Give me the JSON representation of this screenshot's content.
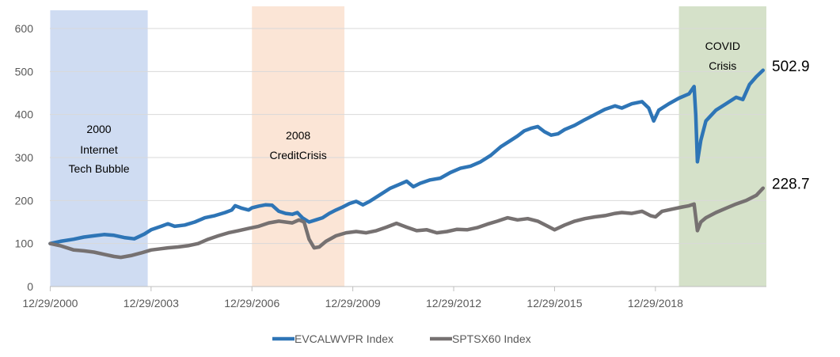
{
  "chart_data": {
    "type": "line",
    "title": "",
    "xlabel": "",
    "ylabel": "",
    "ylim": [
      0,
      600
    ],
    "yticks": [
      0,
      100,
      200,
      300,
      400,
      500,
      600
    ],
    "xlim": [
      2000.99,
      2022.3
    ],
    "xtick_labels": [
      "12/29/2000",
      "12/29/2003",
      "12/29/2006",
      "12/29/2009",
      "12/29/2012",
      "12/29/2015",
      "12/29/2018"
    ],
    "xtick_values": [
      2001,
      2004,
      2007,
      2010,
      2013,
      2016,
      2019
    ],
    "grid": "horizontal",
    "legend_position": "bottom",
    "bands": [
      {
        "x_start": 2001.0,
        "x_end": 2003.9,
        "lines": [
          "2000",
          "Internet",
          "Tech Bubble"
        ],
        "color": "#cfdcf2"
      },
      {
        "x_start": 2007.0,
        "x_end": 2009.75,
        "lines": [
          "2008",
          "CreditCrisis"
        ],
        "color": "#fbe5d6"
      },
      {
        "x_start": 2019.7,
        "x_end": 2022.3,
        "lines": [
          "COVID",
          "Crisis"
        ],
        "color": "#d5e1c9"
      }
    ],
    "series": [
      {
        "name": "EVCALWVPR Index",
        "color": "#2e75b6",
        "end_label": "502.9",
        "points": [
          [
            2001.0,
            100
          ],
          [
            2001.3,
            105
          ],
          [
            2001.7,
            110
          ],
          [
            2002.0,
            115
          ],
          [
            2002.3,
            118
          ],
          [
            2002.6,
            121
          ],
          [
            2002.9,
            119
          ],
          [
            2003.2,
            114
          ],
          [
            2003.5,
            111
          ],
          [
            2003.8,
            122
          ],
          [
            2004.0,
            132
          ],
          [
            2004.3,
            140
          ],
          [
            2004.5,
            146
          ],
          [
            2004.7,
            140
          ],
          [
            2005.0,
            143
          ],
          [
            2005.3,
            150
          ],
          [
            2005.6,
            160
          ],
          [
            2005.9,
            165
          ],
          [
            2006.2,
            172
          ],
          [
            2006.4,
            178
          ],
          [
            2006.5,
            188
          ],
          [
            2006.7,
            182
          ],
          [
            2006.9,
            178
          ],
          [
            2007.0,
            183
          ],
          [
            2007.2,
            187
          ],
          [
            2007.4,
            190
          ],
          [
            2007.6,
            189
          ],
          [
            2007.8,
            175
          ],
          [
            2008.0,
            170
          ],
          [
            2008.2,
            168
          ],
          [
            2008.35,
            172
          ],
          [
            2008.5,
            160
          ],
          [
            2008.7,
            150
          ],
          [
            2008.9,
            155
          ],
          [
            2009.1,
            160
          ],
          [
            2009.3,
            170
          ],
          [
            2009.5,
            178
          ],
          [
            2009.7,
            185
          ],
          [
            2009.9,
            193
          ],
          [
            2010.1,
            198
          ],
          [
            2010.3,
            190
          ],
          [
            2010.5,
            198
          ],
          [
            2010.8,
            213
          ],
          [
            2011.1,
            228
          ],
          [
            2011.4,
            238
          ],
          [
            2011.6,
            245
          ],
          [
            2011.8,
            232
          ],
          [
            2012.0,
            240
          ],
          [
            2012.3,
            248
          ],
          [
            2012.6,
            252
          ],
          [
            2012.9,
            265
          ],
          [
            2013.2,
            275
          ],
          [
            2013.5,
            280
          ],
          [
            2013.8,
            290
          ],
          [
            2014.1,
            305
          ],
          [
            2014.4,
            325
          ],
          [
            2014.7,
            340
          ],
          [
            2014.9,
            350
          ],
          [
            2015.1,
            362
          ],
          [
            2015.3,
            368
          ],
          [
            2015.5,
            372
          ],
          [
            2015.7,
            360
          ],
          [
            2015.9,
            352
          ],
          [
            2016.1,
            355
          ],
          [
            2016.3,
            365
          ],
          [
            2016.6,
            375
          ],
          [
            2016.9,
            388
          ],
          [
            2017.2,
            400
          ],
          [
            2017.5,
            412
          ],
          [
            2017.8,
            420
          ],
          [
            2018.0,
            415
          ],
          [
            2018.3,
            425
          ],
          [
            2018.6,
            430
          ],
          [
            2018.8,
            415
          ],
          [
            2018.95,
            385
          ],
          [
            2019.1,
            410
          ],
          [
            2019.4,
            425
          ],
          [
            2019.7,
            438
          ],
          [
            2020.0,
            448
          ],
          [
            2020.15,
            465
          ],
          [
            2020.2,
            400
          ],
          [
            2020.25,
            290
          ],
          [
            2020.35,
            340
          ],
          [
            2020.5,
            385
          ],
          [
            2020.8,
            410
          ],
          [
            2021.1,
            425
          ],
          [
            2021.4,
            440
          ],
          [
            2021.6,
            435
          ],
          [
            2021.8,
            470
          ],
          [
            2022.0,
            488
          ],
          [
            2022.2,
            502.9
          ]
        ]
      },
      {
        "name": "SPTSX60 Index",
        "color": "#767171",
        "end_label": "228.7",
        "points": [
          [
            2001.0,
            100
          ],
          [
            2001.3,
            95
          ],
          [
            2001.7,
            85
          ],
          [
            2002.0,
            83
          ],
          [
            2002.3,
            80
          ],
          [
            2002.6,
            75
          ],
          [
            2002.9,
            70
          ],
          [
            2003.1,
            68
          ],
          [
            2003.4,
            72
          ],
          [
            2003.7,
            78
          ],
          [
            2004.0,
            85
          ],
          [
            2004.3,
            88
          ],
          [
            2004.5,
            90
          ],
          [
            2004.8,
            92
          ],
          [
            2005.1,
            95
          ],
          [
            2005.4,
            100
          ],
          [
            2005.7,
            110
          ],
          [
            2006.0,
            118
          ],
          [
            2006.3,
            125
          ],
          [
            2006.6,
            130
          ],
          [
            2006.9,
            135
          ],
          [
            2007.2,
            140
          ],
          [
            2007.5,
            148
          ],
          [
            2007.8,
            152
          ],
          [
            2008.0,
            150
          ],
          [
            2008.2,
            148
          ],
          [
            2008.4,
            155
          ],
          [
            2008.55,
            150
          ],
          [
            2008.7,
            110
          ],
          [
            2008.85,
            90
          ],
          [
            2009.0,
            92
          ],
          [
            2009.2,
            105
          ],
          [
            2009.5,
            118
          ],
          [
            2009.8,
            125
          ],
          [
            2010.1,
            128
          ],
          [
            2010.4,
            125
          ],
          [
            2010.7,
            130
          ],
          [
            2011.0,
            138
          ],
          [
            2011.3,
            147
          ],
          [
            2011.6,
            138
          ],
          [
            2011.9,
            130
          ],
          [
            2012.2,
            132
          ],
          [
            2012.5,
            125
          ],
          [
            2012.8,
            128
          ],
          [
            2013.1,
            133
          ],
          [
            2013.4,
            132
          ],
          [
            2013.7,
            137
          ],
          [
            2014.0,
            145
          ],
          [
            2014.3,
            152
          ],
          [
            2014.6,
            160
          ],
          [
            2014.9,
            155
          ],
          [
            2015.2,
            158
          ],
          [
            2015.5,
            152
          ],
          [
            2015.8,
            140
          ],
          [
            2016.0,
            132
          ],
          [
            2016.3,
            143
          ],
          [
            2016.6,
            152
          ],
          [
            2016.9,
            158
          ],
          [
            2017.2,
            162
          ],
          [
            2017.5,
            165
          ],
          [
            2017.8,
            170
          ],
          [
            2018.0,
            172
          ],
          [
            2018.3,
            170
          ],
          [
            2018.6,
            175
          ],
          [
            2018.85,
            165
          ],
          [
            2019.0,
            162
          ],
          [
            2019.2,
            175
          ],
          [
            2019.5,
            180
          ],
          [
            2019.8,
            185
          ],
          [
            2020.0,
            188
          ],
          [
            2020.15,
            192
          ],
          [
            2020.25,
            130
          ],
          [
            2020.35,
            150
          ],
          [
            2020.5,
            160
          ],
          [
            2020.8,
            172
          ],
          [
            2021.1,
            182
          ],
          [
            2021.4,
            192
          ],
          [
            2021.7,
            200
          ],
          [
            2022.0,
            212
          ],
          [
            2022.2,
            228.7
          ]
        ]
      }
    ]
  }
}
